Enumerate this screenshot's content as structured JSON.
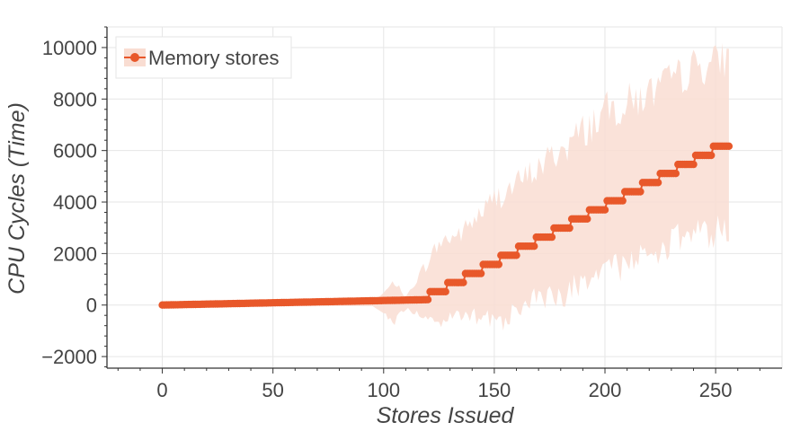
{
  "chart_data": {
    "type": "line",
    "title": "",
    "xlabel": "Stores Issued",
    "ylabel": "CPU Cycles (Time)",
    "xlim": [
      -25,
      280
    ],
    "ylim": [
      -2450,
      10800
    ],
    "xticks": [
      0,
      50,
      100,
      150,
      200,
      250
    ],
    "xtick_labels": [
      "0",
      "50",
      "100",
      "150",
      "200",
      "250"
    ],
    "yticks": [
      -2000,
      0,
      2000,
      4000,
      6000,
      8000,
      10000
    ],
    "ytick_labels": [
      "−2000",
      "0",
      "2000",
      "4000",
      "6000",
      "8000",
      "10000"
    ],
    "grid": true,
    "legend_position": "top-left",
    "series": [
      {
        "name": "Memory stores",
        "color": "#e8582a",
        "band_color": "#f9ddd2",
        "x_range": [
          0,
          256
        ],
        "mean_model": {
          "linear_part": {
            "x_end": 120,
            "y_start": 0,
            "y_end": 210
          },
          "step_part": {
            "first_x": 121,
            "first_y": 520,
            "step_width": 8,
            "step_height": 353
          }
        },
        "band_envelope_points": [
          {
            "x": 0,
            "low": -20,
            "high": 20
          },
          {
            "x": 95,
            "low": -40,
            "high": 60
          },
          {
            "x": 105,
            "low": -600,
            "high": 900
          },
          {
            "x": 110,
            "low": -150,
            "high": 300
          },
          {
            "x": 125,
            "low": -700,
            "high": 2400
          },
          {
            "x": 135,
            "low": -400,
            "high": 2800
          },
          {
            "x": 150,
            "low": -700,
            "high": 4100
          },
          {
            "x": 165,
            "low": 200,
            "high": 5000
          },
          {
            "x": 180,
            "low": 400,
            "high": 6000
          },
          {
            "x": 200,
            "low": 1200,
            "high": 7500
          },
          {
            "x": 220,
            "low": 2000,
            "high": 8200
          },
          {
            "x": 240,
            "low": 2800,
            "high": 9200
          },
          {
            "x": 256,
            "low": 2900,
            "high": 9600
          }
        ]
      }
    ]
  }
}
